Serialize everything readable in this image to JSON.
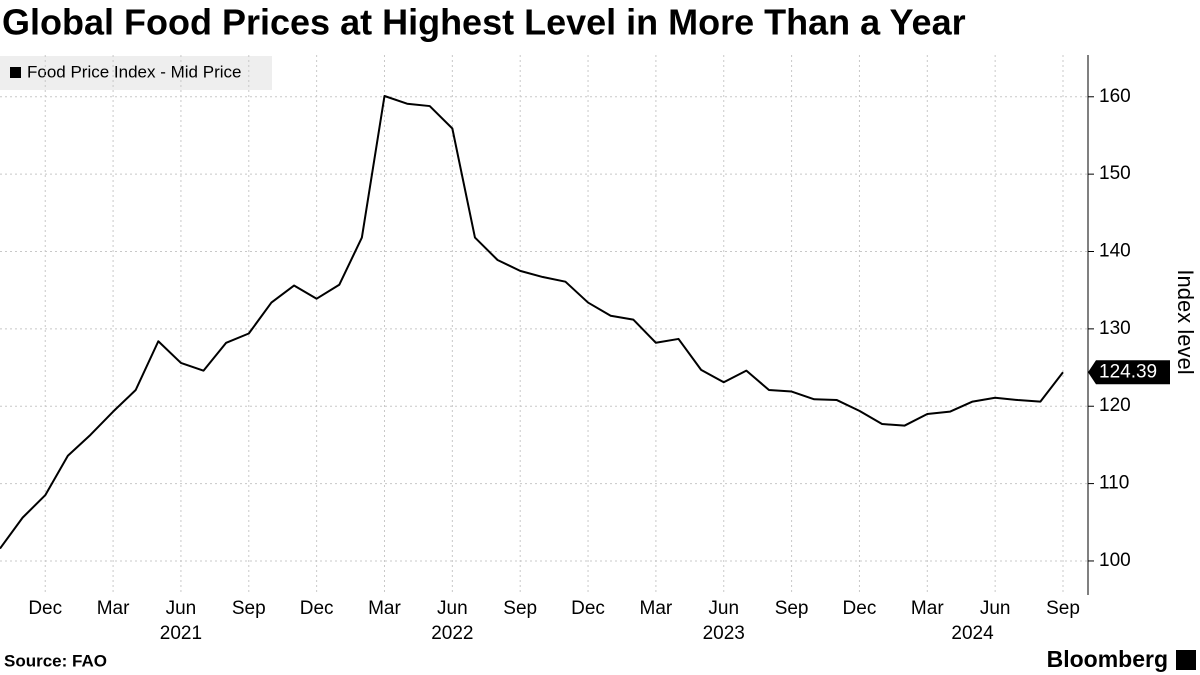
{
  "chart_data": {
    "type": "line",
    "title": "Global Food Prices at Highest Level in More Than a Year",
    "y_label": "Index level",
    "source": "Source: FAO",
    "brand": "Bloomberg",
    "legend": "top-left",
    "grid": true,
    "x": [
      "2020-10",
      "2020-11",
      "2020-12",
      "2021-01",
      "2021-02",
      "2021-03",
      "2021-04",
      "2021-05",
      "2021-06",
      "2021-07",
      "2021-08",
      "2021-09",
      "2021-10",
      "2021-11",
      "2021-12",
      "2022-01",
      "2022-02",
      "2022-03",
      "2022-04",
      "2022-05",
      "2022-06",
      "2022-07",
      "2022-08",
      "2022-09",
      "2022-10",
      "2022-11",
      "2022-12",
      "2023-01",
      "2023-02",
      "2023-03",
      "2023-04",
      "2023-05",
      "2023-06",
      "2023-07",
      "2023-08",
      "2023-09",
      "2023-10",
      "2023-11",
      "2023-12",
      "2024-01",
      "2024-02",
      "2024-03",
      "2024-04",
      "2024-05",
      "2024-06",
      "2024-07",
      "2024-08",
      "2024-09"
    ],
    "series": [
      {
        "name": "Food Price Index - Mid Price",
        "color": "#000000",
        "values": [
          101.6,
          105.6,
          108.5,
          113.6,
          116.3,
          119.3,
          122.1,
          128.4,
          125.6,
          124.6,
          128.2,
          129.4,
          133.4,
          135.6,
          133.9,
          135.7,
          141.8,
          160.1,
          159.1,
          158.8,
          155.9,
          141.8,
          138.9,
          137.5,
          136.7,
          136.1,
          133.4,
          131.7,
          131.2,
          128.2,
          128.7,
          124.7,
          123.1,
          124.6,
          122.1,
          121.9,
          120.9,
          120.8,
          119.4,
          117.7,
          117.5,
          119.0,
          119.3,
          120.6,
          121.1,
          120.8,
          120.6,
          124.39
        ]
      }
    ],
    "ylim": [
      95.6,
      165.4
    ],
    "yticks": [
      100,
      110,
      120,
      130,
      140,
      150,
      160
    ],
    "xticks": [
      {
        "value": "2020-12",
        "label": "Dec"
      },
      {
        "value": "2021-03",
        "label": "Mar"
      },
      {
        "value": "2021-06",
        "label": "Jun"
      },
      {
        "value": "2021-09",
        "label": "Sep"
      },
      {
        "value": "2021-12",
        "label": "Dec"
      },
      {
        "value": "2022-03",
        "label": "Mar"
      },
      {
        "value": "2022-06",
        "label": "Jun"
      },
      {
        "value": "2022-09",
        "label": "Sep"
      },
      {
        "value": "2022-12",
        "label": "Dec"
      },
      {
        "value": "2023-03",
        "label": "Mar"
      },
      {
        "value": "2023-06",
        "label": "Jun"
      },
      {
        "value": "2023-09",
        "label": "Sep"
      },
      {
        "value": "2023-12",
        "label": "Dec"
      },
      {
        "value": "2024-03",
        "label": "Mar"
      },
      {
        "value": "2024-06",
        "label": "Jun"
      },
      {
        "value": "2024-09",
        "label": "Sep"
      }
    ],
    "year_labels": [
      {
        "value": "2021-06",
        "label": "2021"
      },
      {
        "value": "2022-06",
        "label": "2022"
      },
      {
        "value": "2023-06",
        "label": "2023"
      },
      {
        "value": "2024-05",
        "label": "2024"
      }
    ]
  }
}
